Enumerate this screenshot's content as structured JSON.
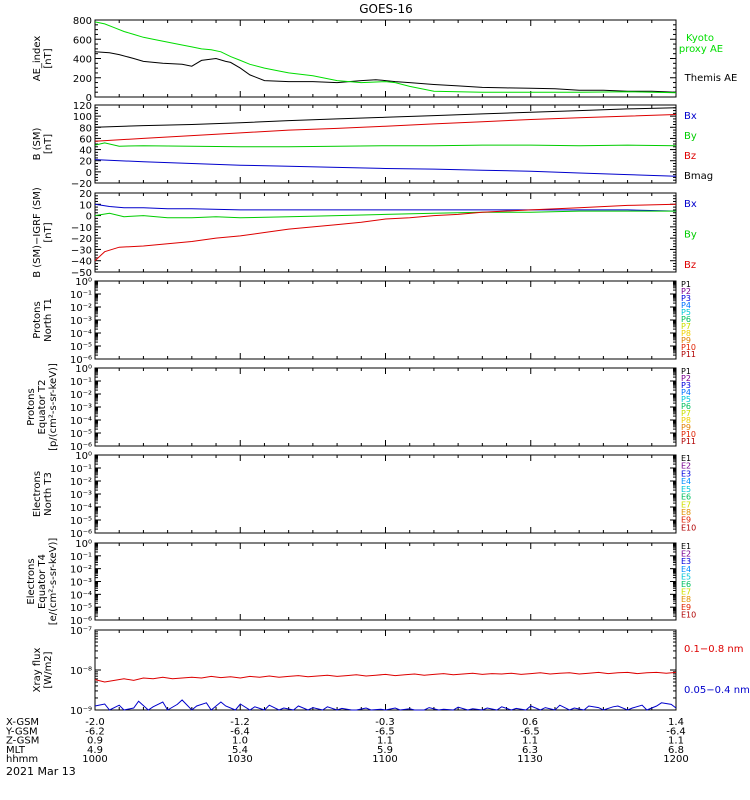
{
  "title": "GOES-16",
  "date_label": "2021 Mar 13",
  "ephemeris": {
    "labels": [
      "X-GSM",
      "Y-GSM",
      "Z-GSM",
      "MLT",
      "hhmm"
    ],
    "columns": [
      [
        "-2.0",
        "-6.2",
        "0.9",
        "4.9",
        "1000"
      ],
      [
        "-1.2",
        "-6.4",
        "1.0",
        "5.4",
        "1030"
      ],
      [
        "-0.3",
        "-6.5",
        "1.1",
        "5.9",
        "1100"
      ],
      [
        "0.6",
        "-6.5",
        "1.1",
        "6.3",
        "1130"
      ],
      [
        "1.4",
        "-6.4",
        "1.1",
        "6.8",
        "1200"
      ]
    ]
  },
  "chart_data": [
    {
      "id": "ae",
      "type": "line",
      "ylabel": [
        "AE_index",
        "[nT]"
      ],
      "ylim": [
        0,
        800
      ],
      "yticks": [
        "0",
        "200",
        "400",
        "600",
        "800"
      ],
      "yvals": [
        0,
        200,
        400,
        600,
        800
      ],
      "xlim": [
        0,
        120
      ],
      "legend": [
        {
          "text": "Kyoto",
          "color": "#00dd00"
        },
        {
          "text": "proxy AE",
          "color": "#00dd00"
        },
        {
          "text": "Themis AE",
          "color": "#000000"
        }
      ],
      "series": [
        {
          "color": "#000000",
          "x": [
            0,
            3,
            5,
            8,
            10,
            14,
            18,
            20,
            22,
            25,
            27,
            28,
            30,
            32,
            35,
            40,
            45,
            50,
            55,
            58,
            60,
            62,
            65,
            70,
            75,
            80,
            85,
            90,
            95,
            100,
            105,
            110,
            115,
            120
          ],
          "y": [
            470,
            460,
            440,
            400,
            370,
            350,
            340,
            320,
            380,
            400,
            370,
            360,
            300,
            230,
            170,
            160,
            160,
            150,
            170,
            180,
            170,
            160,
            150,
            130,
            115,
            100,
            95,
            90,
            85,
            70,
            70,
            60,
            60,
            50
          ]
        },
        {
          "color": "#00dd00",
          "x": [
            0,
            2,
            4,
            6,
            8,
            10,
            12,
            15,
            18,
            20,
            22,
            24,
            26,
            28,
            30,
            32,
            35,
            38,
            40,
            45,
            50,
            55,
            60,
            62,
            65,
            70,
            75,
            80,
            85,
            90,
            95,
            100,
            110,
            120
          ],
          "y": [
            780,
            760,
            720,
            680,
            650,
            620,
            600,
            570,
            540,
            520,
            500,
            490,
            470,
            420,
            380,
            340,
            300,
            270,
            250,
            220,
            170,
            150,
            160,
            150,
            110,
            60,
            55,
            50,
            50,
            50,
            50,
            50,
            55,
            45
          ]
        }
      ]
    },
    {
      "id": "b",
      "type": "line",
      "ylabel": [
        "B (SM)",
        "[nT]"
      ],
      "ylim": [
        -20,
        120
      ],
      "yticks": [
        "−20",
        "0",
        "20",
        "40",
        "60",
        "80",
        "100",
        "120"
      ],
      "yvals": [
        -20,
        0,
        20,
        40,
        60,
        80,
        100,
        120
      ],
      "xlim": [
        0,
        120
      ],
      "legend": [
        {
          "text": "Bx",
          "color": "#0000cc"
        },
        {
          "text": "By",
          "color": "#00cc00"
        },
        {
          "text": "Bz",
          "color": "#dd0000"
        },
        {
          "text": "Bmag",
          "color": "#000000"
        }
      ],
      "series": [
        {
          "color": "#000000",
          "x": [
            0,
            10,
            20,
            30,
            40,
            50,
            60,
            70,
            80,
            90,
            100,
            110,
            120
          ],
          "y": [
            80,
            83,
            85,
            88,
            92,
            95,
            98,
            101,
            104,
            107,
            110,
            113,
            115
          ]
        },
        {
          "color": "#dd0000",
          "x": [
            0,
            10,
            20,
            30,
            40,
            50,
            60,
            70,
            80,
            90,
            100,
            110,
            120
          ],
          "y": [
            55,
            60,
            65,
            70,
            75,
            78,
            82,
            86,
            90,
            94,
            97,
            100,
            103
          ]
        },
        {
          "color": "#00cc00",
          "x": [
            0,
            2,
            5,
            10,
            20,
            30,
            40,
            50,
            60,
            70,
            80,
            90,
            100,
            110,
            120
          ],
          "y": [
            48,
            52,
            46,
            47,
            46,
            45,
            45,
            46,
            47,
            47,
            48,
            48,
            47,
            48,
            47
          ]
        },
        {
          "color": "#0000cc",
          "x": [
            0,
            10,
            20,
            30,
            40,
            50,
            60,
            70,
            80,
            90,
            100,
            110,
            120
          ],
          "y": [
            22,
            18,
            15,
            12,
            10,
            8,
            6,
            5,
            3,
            1,
            -2,
            -5,
            -8
          ]
        }
      ]
    },
    {
      "id": "bdiff",
      "type": "line",
      "ylabel": [
        "B (SM)−IGRF (SM)",
        "[nT]"
      ],
      "ylim": [
        -50,
        20
      ],
      "yticks": [
        "−50",
        "−40",
        "−30",
        "−20",
        "−10",
        "0",
        "10",
        "20"
      ],
      "yvals": [
        -50,
        -40,
        -30,
        -20,
        -10,
        0,
        10,
        20
      ],
      "xlim": [
        0,
        120
      ],
      "legend": [
        {
          "text": "Bx",
          "color": "#0000cc"
        },
        {
          "text": "By",
          "color": "#00cc00"
        },
        {
          "text": "Bz",
          "color": "#dd0000"
        }
      ],
      "series": [
        {
          "color": "#0000cc",
          "x": [
            0,
            3,
            6,
            10,
            15,
            20,
            30,
            40,
            50,
            60,
            70,
            80,
            90,
            100,
            110,
            120
          ],
          "y": [
            10,
            8,
            7,
            7,
            6,
            6,
            5,
            5,
            5,
            5,
            5,
            5,
            5,
            5,
            5,
            4
          ]
        },
        {
          "color": "#00cc00",
          "x": [
            0,
            3,
            6,
            10,
            15,
            20,
            25,
            30,
            40,
            50,
            60,
            70,
            80,
            90,
            100,
            110,
            120
          ],
          "y": [
            0,
            2,
            -1,
            0,
            -2,
            -2,
            -1,
            -2,
            -1,
            0,
            1,
            2,
            3,
            3,
            4,
            4,
            4
          ]
        },
        {
          "color": "#dd0000",
          "x": [
            0,
            2,
            5,
            10,
            15,
            20,
            25,
            30,
            35,
            40,
            45,
            50,
            55,
            60,
            65,
            70,
            75,
            80,
            90,
            100,
            110,
            120
          ],
          "y": [
            -40,
            -32,
            -28,
            -27,
            -25,
            -23,
            -20,
            -18,
            -15,
            -12,
            -10,
            -8,
            -6,
            -3,
            -2,
            0,
            1,
            3,
            5,
            7,
            9,
            10
          ]
        }
      ]
    },
    {
      "id": "p_north",
      "type": "line",
      "ylabel": [
        "Protons",
        "North T1"
      ],
      "ylog": true,
      "ylim_exp": [
        -6,
        0
      ],
      "yticks": [
        "10⁰",
        "10⁻¹",
        "10⁻²",
        "10⁻³",
        "10⁻⁴",
        "10⁻⁵",
        "10⁻⁶"
      ],
      "legend": [
        {
          "text": "P1",
          "color": "#000000"
        },
        {
          "text": "P2",
          "color": "#7a0090"
        },
        {
          "text": "P3",
          "color": "#0000dd"
        },
        {
          "text": "P4",
          "color": "#0070ff"
        },
        {
          "text": "P5",
          "color": "#00c8d8"
        },
        {
          "text": "P6",
          "color": "#00c060"
        },
        {
          "text": "P7",
          "color": "#c8e000"
        },
        {
          "text": "P8",
          "color": "#f0d000"
        },
        {
          "text": "P9",
          "color": "#e08000"
        },
        {
          "text": "P10",
          "color": "#e02000"
        },
        {
          "text": "P11",
          "color": "#b00000"
        }
      ],
      "series": []
    },
    {
      "id": "p_equator",
      "type": "line",
      "ylabel": [
        "Protons",
        "Equator T2",
        "[p/(cm²-s-sr-keV)]"
      ],
      "ylog": true,
      "ylim_exp": [
        -6,
        0
      ],
      "yticks": [
        "10⁰",
        "10⁻¹",
        "10⁻²",
        "10⁻³",
        "10⁻⁴",
        "10⁻⁵",
        "10⁻⁶"
      ],
      "legend": [
        {
          "text": "P1",
          "color": "#000000"
        },
        {
          "text": "P2",
          "color": "#7a0090"
        },
        {
          "text": "P3",
          "color": "#0000dd"
        },
        {
          "text": "P4",
          "color": "#0070ff"
        },
        {
          "text": "P5",
          "color": "#00c8d8"
        },
        {
          "text": "P6",
          "color": "#00c060"
        },
        {
          "text": "P7",
          "color": "#c8e000"
        },
        {
          "text": "P8",
          "color": "#f0d000"
        },
        {
          "text": "P9",
          "color": "#e08000"
        },
        {
          "text": "P10",
          "color": "#e02000"
        },
        {
          "text": "P11",
          "color": "#b00000"
        }
      ],
      "series": []
    },
    {
      "id": "e_north",
      "type": "line",
      "ylabel": [
        "Electrons",
        "North T3"
      ],
      "ylog": true,
      "ylim_exp": [
        -6,
        0
      ],
      "yticks": [
        "10⁰",
        "10⁻¹",
        "10⁻²",
        "10⁻³",
        "10⁻⁴",
        "10⁻⁵",
        "10⁻⁶"
      ],
      "legend": [
        {
          "text": "E1",
          "color": "#000000"
        },
        {
          "text": "E2",
          "color": "#7a0090"
        },
        {
          "text": "E3",
          "color": "#0000dd"
        },
        {
          "text": "E4",
          "color": "#0090ff"
        },
        {
          "text": "E5",
          "color": "#00c8d8"
        },
        {
          "text": "E6",
          "color": "#00c060"
        },
        {
          "text": "E7",
          "color": "#d0e000"
        },
        {
          "text": "E8",
          "color": "#e09000"
        },
        {
          "text": "E9",
          "color": "#e02000"
        },
        {
          "text": "E10",
          "color": "#b00000"
        }
      ],
      "series": []
    },
    {
      "id": "e_equator",
      "type": "line",
      "ylabel": [
        "Electrons",
        "Equator T4",
        "[e/(cm²-s-sr-keV)]"
      ],
      "ylog": true,
      "ylim_exp": [
        -6,
        0
      ],
      "yticks": [
        "10⁰",
        "10⁻¹",
        "10⁻²",
        "10⁻³",
        "10⁻⁴",
        "10⁻⁵",
        "10⁻⁶"
      ],
      "legend": [
        {
          "text": "E1",
          "color": "#000000"
        },
        {
          "text": "E2",
          "color": "#7a0090"
        },
        {
          "text": "E3",
          "color": "#0000dd"
        },
        {
          "text": "E4",
          "color": "#0090ff"
        },
        {
          "text": "E5",
          "color": "#00c8d8"
        },
        {
          "text": "E6",
          "color": "#00c060"
        },
        {
          "text": "E7",
          "color": "#d0e000"
        },
        {
          "text": "E8",
          "color": "#e09000"
        },
        {
          "text": "E9",
          "color": "#e02000"
        },
        {
          "text": "E10",
          "color": "#b00000"
        }
      ],
      "series": []
    },
    {
      "id": "xray",
      "type": "line",
      "ylabel": [
        "Xray flux",
        "[W/m2]"
      ],
      "ylog": true,
      "ylim_exp": [
        -9,
        -7
      ],
      "yticks": [
        "10⁻⁷",
        "10⁻⁸",
        "10⁻⁹"
      ],
      "legend": [
        {
          "text": "0.1−0.8 nm",
          "color": "#dd0000"
        },
        {
          "text": "0.05−0.4 nm",
          "color": "#0000cc"
        }
      ],
      "series": [
        {
          "color": "#dd0000",
          "log": true,
          "x": [
            0,
            2,
            4,
            6,
            8,
            10,
            12,
            14,
            16,
            18,
            20,
            22,
            24,
            26,
            28,
            30,
            32,
            34,
            36,
            38,
            40,
            42,
            44,
            46,
            48,
            50,
            52,
            54,
            56,
            58,
            60,
            62,
            64,
            66,
            68,
            70,
            72,
            74,
            76,
            78,
            80,
            82,
            84,
            86,
            88,
            90,
            92,
            94,
            96,
            98,
            100,
            102,
            104,
            106,
            108,
            110,
            112,
            114,
            116,
            118,
            120
          ],
          "y": [
            -8.24,
            -8.3,
            -8.26,
            -8.22,
            -8.26,
            -8.2,
            -8.22,
            -8.18,
            -8.22,
            -8.2,
            -8.18,
            -8.2,
            -8.16,
            -8.19,
            -8.17,
            -8.2,
            -8.16,
            -8.18,
            -8.15,
            -8.18,
            -8.16,
            -8.14,
            -8.17,
            -8.15,
            -8.13,
            -8.16,
            -8.14,
            -8.12,
            -8.15,
            -8.13,
            -8.11,
            -8.14,
            -8.12,
            -8.1,
            -8.13,
            -8.11,
            -8.09,
            -8.12,
            -8.1,
            -8.08,
            -8.11,
            -8.09,
            -8.1,
            -8.08,
            -8.11,
            -8.09,
            -8.07,
            -8.1,
            -8.08,
            -8.07,
            -8.1,
            -8.08,
            -8.06,
            -8.09,
            -8.07,
            -8.06,
            -8.09,
            -8.07,
            -8.06,
            -8.08,
            -8.06
          ]
        },
        {
          "color": "#0000cc",
          "log": true,
          "x": [
            0,
            2,
            3,
            5,
            6,
            8,
            9,
            11,
            12,
            14,
            15,
            17,
            18,
            20,
            21,
            23,
            24,
            26,
            27,
            29,
            30,
            32,
            33,
            35,
            36,
            38,
            39,
            41,
            42,
            44,
            45,
            47,
            48,
            50,
            51,
            53,
            54,
            56,
            57,
            59,
            60,
            62,
            63,
            65,
            66,
            68,
            69,
            71,
            72,
            74,
            75,
            77,
            78,
            80,
            81,
            83,
            84,
            86,
            87,
            89,
            90,
            92,
            93,
            95,
            96,
            98,
            99,
            101,
            102,
            104,
            105,
            107,
            108,
            110,
            111,
            113,
            114,
            116,
            117,
            119,
            120
          ],
          "y": [
            -8.9,
            -8.85,
            -9.0,
            -8.88,
            -9.0,
            -8.95,
            -8.78,
            -9.0,
            -8.92,
            -8.8,
            -9.0,
            -8.86,
            -8.75,
            -9.0,
            -8.9,
            -8.82,
            -9.0,
            -8.8,
            -8.9,
            -9.0,
            -8.85,
            -9.0,
            -8.92,
            -9.0,
            -8.88,
            -9.0,
            -8.95,
            -9.0,
            -8.9,
            -9.0,
            -8.94,
            -9.0,
            -8.92,
            -9.0,
            -8.96,
            -9.0,
            -9.0,
            -8.95,
            -9.0,
            -8.98,
            -9.0,
            -8.95,
            -9.0,
            -8.97,
            -9.0,
            -9.0,
            -8.94,
            -9.0,
            -8.98,
            -9.0,
            -8.93,
            -9.0,
            -8.97,
            -9.0,
            -8.95,
            -9.0,
            -8.92,
            -9.0,
            -8.96,
            -9.0,
            -8.9,
            -9.0,
            -8.94,
            -9.0,
            -8.88,
            -9.0,
            -8.95,
            -9.0,
            -8.9,
            -8.94,
            -9.0,
            -8.92,
            -8.9,
            -9.0,
            -8.95,
            -8.88,
            -9.0,
            -8.9,
            -8.82,
            -8.86,
            -8.95
          ]
        }
      ]
    }
  ]
}
